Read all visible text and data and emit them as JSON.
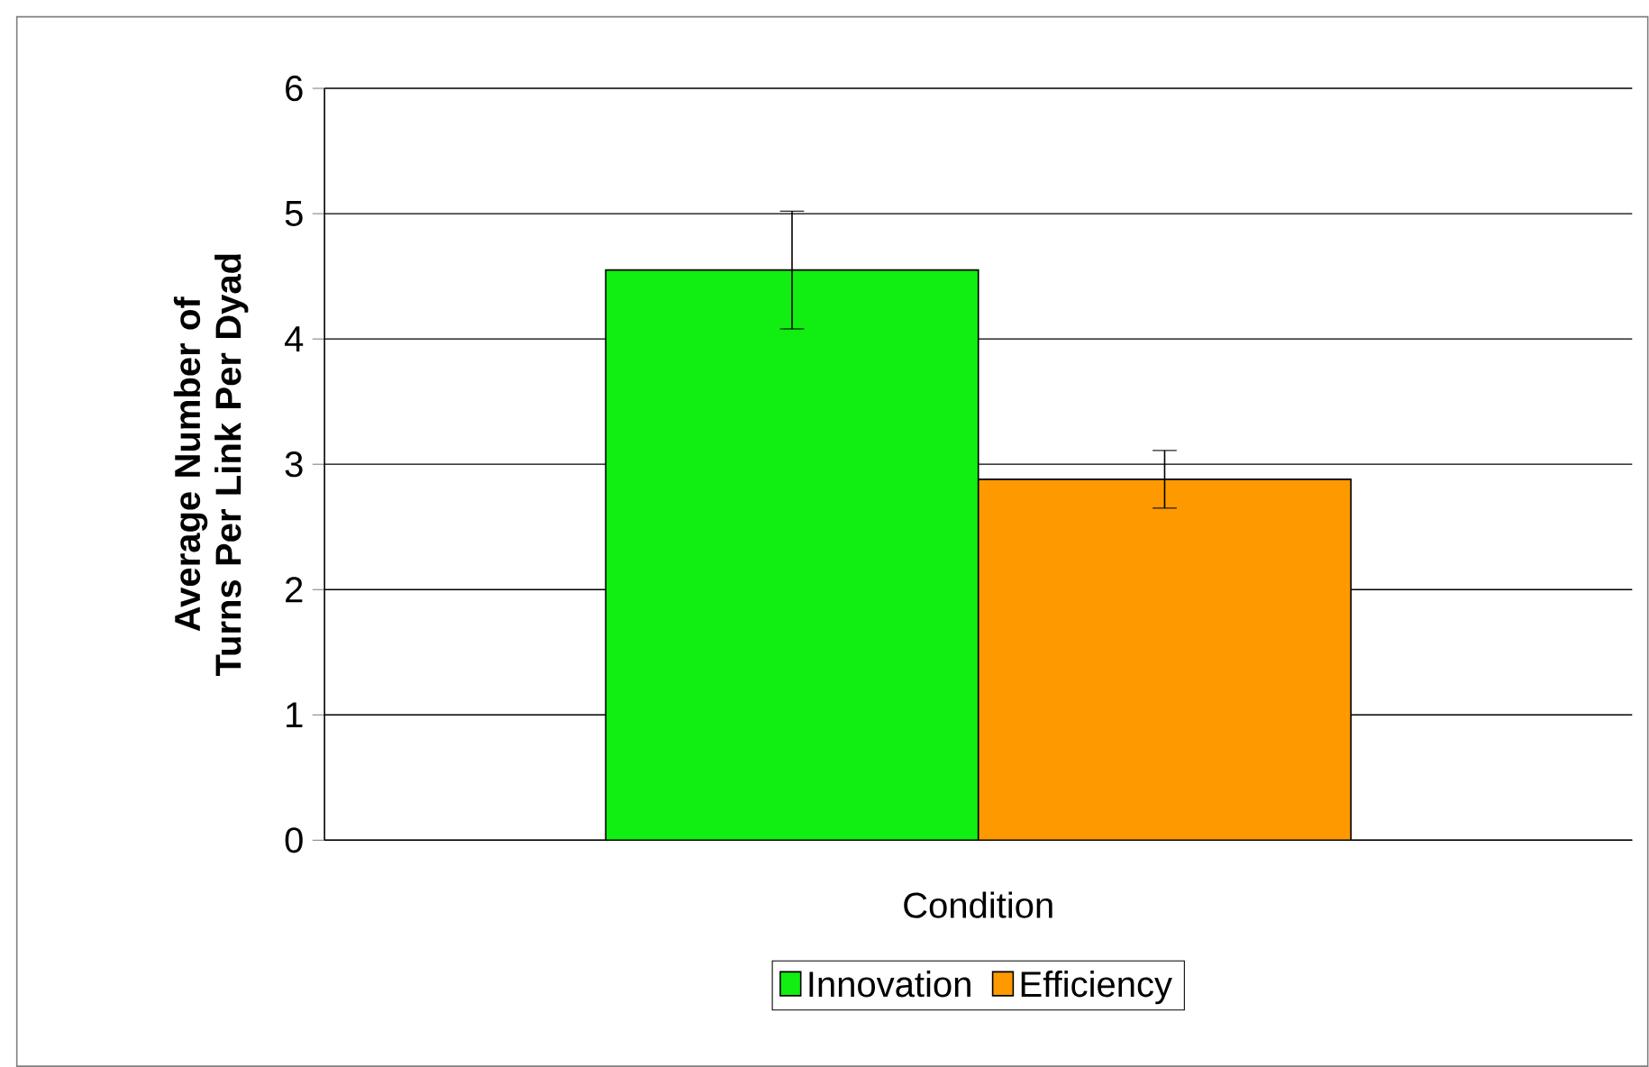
{
  "chart_data": {
    "type": "bar",
    "xlabel": "Condition",
    "ylabel": "Average Number of Turns Per Link Per Dyad",
    "categories": [
      null
    ],
    "series": [
      {
        "name": "Innovation",
        "color": "#11ee11",
        "values": [
          4.55
        ],
        "errors": [
          0.47
        ]
      },
      {
        "name": "Efficiency",
        "color": "#ff9900",
        "values": [
          2.88
        ],
        "errors": [
          0.23
        ]
      }
    ],
    "ylim": [
      0,
      6
    ],
    "yticks": [
      0,
      1,
      2,
      3,
      4,
      5,
      6
    ],
    "grid": "y",
    "legend": "bottom"
  }
}
